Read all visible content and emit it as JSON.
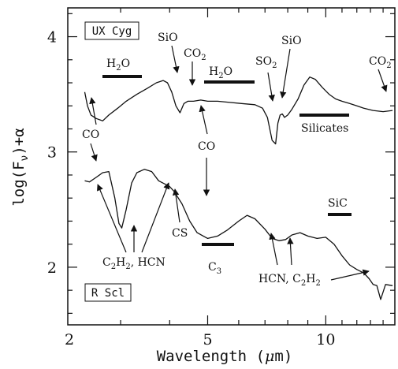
{
  "chart_data": {
    "type": "line",
    "title": "",
    "xlabel": "Wavelength (μm)",
    "ylabel": "log(Fν)+α",
    "xscale": "log",
    "xlim": [
      2.2,
      15
    ],
    "ylim": [
      1.5,
      4.25
    ],
    "x_ticks": [
      2,
      5,
      10
    ],
    "y_ticks": [
      2,
      3,
      4
    ],
    "grid": false,
    "legend": "none",
    "series": [
      {
        "name": "UX Cyg",
        "x": [
          2.43,
          2.47,
          2.52,
          2.6,
          2.7,
          2.8,
          2.95,
          3.1,
          3.3,
          3.5,
          3.7,
          3.85,
          3.95,
          4.05,
          4.15,
          4.25,
          4.35,
          4.45,
          4.6,
          4.8,
          5.0,
          5.3,
          5.7,
          6.1,
          6.6,
          6.9,
          7.1,
          7.3,
          7.45,
          7.55,
          7.65,
          7.75,
          7.85,
          8.0,
          8.2,
          8.5,
          8.8,
          9.1,
          9.4,
          9.8,
          10.2,
          10.6,
          11.0,
          11.5,
          12.0,
          12.5,
          13.2,
          14.0,
          14.8
        ],
        "y": [
          3.52,
          3.4,
          3.32,
          3.29,
          3.27,
          3.32,
          3.38,
          3.44,
          3.5,
          3.55,
          3.6,
          3.62,
          3.6,
          3.52,
          3.4,
          3.34,
          3.42,
          3.44,
          3.44,
          3.45,
          3.44,
          3.44,
          3.43,
          3.42,
          3.41,
          3.38,
          3.3,
          3.1,
          3.07,
          3.25,
          3.32,
          3.33,
          3.3,
          3.32,
          3.37,
          3.46,
          3.58,
          3.65,
          3.63,
          3.56,
          3.5,
          3.46,
          3.44,
          3.42,
          3.4,
          3.38,
          3.36,
          3.35,
          3.36
        ]
      },
      {
        "name": "R Scl",
        "x": [
          2.43,
          2.5,
          2.6,
          2.7,
          2.8,
          2.9,
          2.97,
          3.02,
          3.1,
          3.2,
          3.3,
          3.45,
          3.6,
          3.75,
          3.9,
          4.0,
          4.1,
          4.3,
          4.5,
          4.7,
          5.0,
          5.3,
          5.6,
          6.0,
          6.3,
          6.6,
          7.0,
          7.3,
          7.6,
          7.9,
          8.2,
          8.6,
          9.0,
          9.5,
          10.0,
          10.5,
          11.0,
          11.5,
          12.0,
          12.5,
          12.9,
          13.2,
          13.5,
          13.8,
          14.2,
          14.8
        ],
        "y": [
          2.75,
          2.74,
          2.78,
          2.82,
          2.83,
          2.6,
          2.38,
          2.34,
          2.5,
          2.73,
          2.82,
          2.85,
          2.83,
          2.75,
          2.72,
          2.7,
          2.66,
          2.55,
          2.4,
          2.3,
          2.25,
          2.27,
          2.32,
          2.4,
          2.45,
          2.42,
          2.33,
          2.25,
          2.23,
          2.24,
          2.28,
          2.3,
          2.27,
          2.25,
          2.26,
          2.2,
          2.1,
          2.02,
          1.98,
          1.95,
          1.9,
          1.85,
          1.84,
          1.72,
          1.85,
          1.84
        ]
      }
    ]
  },
  "labels": {
    "ux_cyg": "UX Cyg",
    "r_scl": "R Scl",
    "h2o_a_main": "H",
    "h2o_a_sub": "2",
    "h2o_a_end": "O",
    "h2o_b_main": "H",
    "h2o_b_sub": "2",
    "h2o_b_end": "O",
    "sio_a": "SiO",
    "sio_b": "SiO",
    "co2_a_main": "CO",
    "co2_a_sub": "2",
    "co2_b_main": "CO",
    "co2_b_sub": "2",
    "so2_main": "SO",
    "so2_sub": "2",
    "co_a": "CO",
    "co_b": "CO",
    "silicates": "Silicates",
    "sic": "SiC",
    "cs": "CS",
    "c3_main": "C",
    "c3_sub": "3",
    "c2h2_hcn_a": "C",
    "c2h2_hcn_b": "2",
    "c2h2_hcn_c": "H",
    "c2h2_hcn_d": "2",
    "c2h2_hcn_e": ", HCN",
    "hcn_c2h2_a": "HCN, C",
    "hcn_c2h2_b": "2",
    "hcn_c2h2_c": "H",
    "hcn_c2h2_d": "2"
  }
}
